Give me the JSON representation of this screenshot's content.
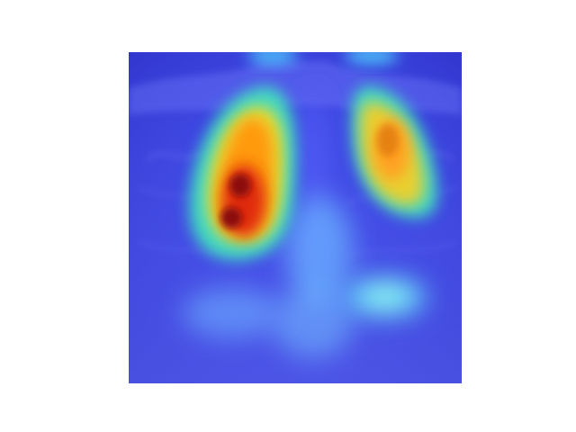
{
  "figure": {
    "kind": "chest radiograph with heatmap overlay",
    "colormap": "jet",
    "corner_marker": "",
    "colors": {
      "background": "#ffffff",
      "base_tint": "#3c46e6",
      "deep_tint": "#2a2ad0",
      "hot_core": "#8b0000",
      "hot": "#e02010",
      "warm": "#ff9a10",
      "mid": "#f0d020",
      "cool": "#40e0b0",
      "cyan": "#50d8ff",
      "body_glow": "#6ab6ff"
    }
  }
}
